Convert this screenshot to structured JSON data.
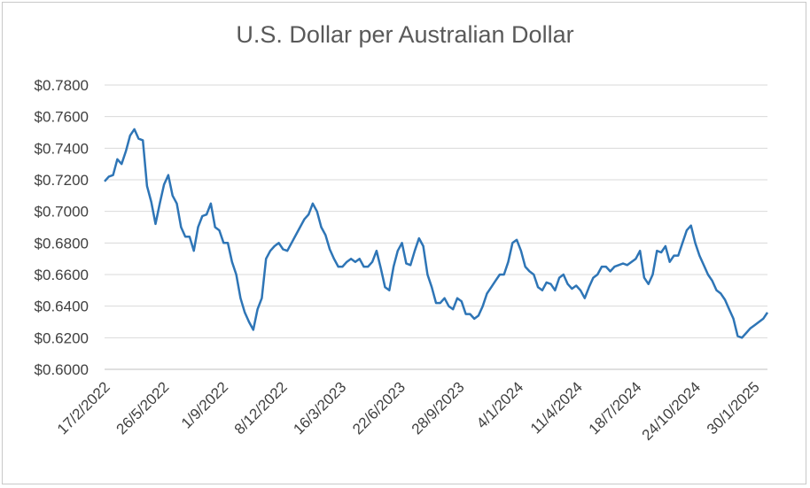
{
  "chart_data": {
    "type": "line",
    "title": "U.S. Dollar per Australian Dollar",
    "xlabel": "",
    "ylabel": "",
    "ylim": [
      0.6,
      0.78
    ],
    "y_ticks": [
      "$0.6000",
      "$0.6200",
      "$0.6400",
      "$0.6600",
      "$0.6800",
      "$0.7000",
      "$0.7200",
      "$0.7400",
      "$0.7600",
      "$0.7800"
    ],
    "x_ticks": [
      "17/2/2022",
      "26/5/2022",
      "1/9/2022",
      "8/12/2022",
      "16/3/2023",
      "22/6/2023",
      "28/9/2023",
      "4/1/2024",
      "11/4/2024",
      "18/7/2024",
      "24/10/2024",
      "30/1/2025"
    ],
    "grid": "horizontal",
    "legend": "none",
    "line_color": "#2e75b6",
    "series": [
      {
        "x": [
          "2022-02-17",
          "2022-02-24",
          "2022-03-03",
          "2022-03-10",
          "2022-03-17",
          "2022-03-24",
          "2022-03-31",
          "2022-04-07",
          "2022-04-14",
          "2022-04-21",
          "2022-04-28",
          "2022-05-05",
          "2022-05-12",
          "2022-05-19",
          "2022-05-26",
          "2022-06-02",
          "2022-06-09",
          "2022-06-16",
          "2022-06-23",
          "2022-06-30",
          "2022-07-07",
          "2022-07-14",
          "2022-07-21",
          "2022-07-28",
          "2022-08-04",
          "2022-08-11",
          "2022-08-18",
          "2022-08-25",
          "2022-09-01",
          "2022-09-08",
          "2022-09-15",
          "2022-09-22",
          "2022-09-29",
          "2022-10-06",
          "2022-10-13",
          "2022-10-20",
          "2022-10-27",
          "2022-11-03",
          "2022-11-10",
          "2022-11-17",
          "2022-11-24",
          "2022-12-01",
          "2022-12-08",
          "2022-12-15",
          "2022-12-22",
          "2022-12-29",
          "2023-01-05",
          "2023-01-12",
          "2023-01-19",
          "2023-01-26",
          "2023-02-02",
          "2023-02-09",
          "2023-02-16",
          "2023-02-23",
          "2023-03-02",
          "2023-03-09",
          "2023-03-16",
          "2023-03-23",
          "2023-03-30",
          "2023-04-06",
          "2023-04-13",
          "2023-04-20",
          "2023-04-27",
          "2023-05-04",
          "2023-05-11",
          "2023-05-18",
          "2023-05-25",
          "2023-06-01",
          "2023-06-08",
          "2023-06-15",
          "2023-06-22",
          "2023-06-29",
          "2023-07-06",
          "2023-07-13",
          "2023-07-20",
          "2023-07-27",
          "2023-08-03",
          "2023-08-10",
          "2023-08-17",
          "2023-08-24",
          "2023-08-31",
          "2023-09-07",
          "2023-09-14",
          "2023-09-21",
          "2023-09-28",
          "2023-10-05",
          "2023-10-12",
          "2023-10-19",
          "2023-10-26",
          "2023-11-02",
          "2023-11-09",
          "2023-11-16",
          "2023-11-23",
          "2023-11-30",
          "2023-12-07",
          "2023-12-14",
          "2023-12-21",
          "2023-12-28",
          "2024-01-04",
          "2024-01-11",
          "2024-01-18",
          "2024-01-25",
          "2024-02-01",
          "2024-02-08",
          "2024-02-15",
          "2024-02-22",
          "2024-02-29",
          "2024-03-07",
          "2024-03-14",
          "2024-03-21",
          "2024-03-28",
          "2024-04-04",
          "2024-04-11",
          "2024-04-18",
          "2024-04-25",
          "2024-05-02",
          "2024-05-09",
          "2024-05-16",
          "2024-05-23",
          "2024-05-30",
          "2024-06-06",
          "2024-06-13",
          "2024-06-20",
          "2024-06-27",
          "2024-07-04",
          "2024-07-11",
          "2024-07-18",
          "2024-07-25",
          "2024-08-01",
          "2024-08-08",
          "2024-08-15",
          "2024-08-22",
          "2024-08-29",
          "2024-09-05",
          "2024-09-12",
          "2024-09-19",
          "2024-09-26",
          "2024-10-03",
          "2024-10-10",
          "2024-10-17",
          "2024-10-24",
          "2024-10-31",
          "2024-11-07",
          "2024-11-14",
          "2024-11-21",
          "2024-11-28",
          "2024-12-05",
          "2024-12-12",
          "2024-12-19",
          "2024-12-26",
          "2025-01-02",
          "2025-01-09",
          "2025-01-16",
          "2025-01-23",
          "2025-01-30",
          "2025-02-06",
          "2025-02-13"
        ],
        "values": [
          0.719,
          0.722,
          0.723,
          0.733,
          0.73,
          0.738,
          0.748,
          0.752,
          0.746,
          0.745,
          0.716,
          0.706,
          0.692,
          0.705,
          0.717,
          0.723,
          0.71,
          0.705,
          0.69,
          0.684,
          0.684,
          0.675,
          0.69,
          0.697,
          0.698,
          0.705,
          0.69,
          0.688,
          0.68,
          0.68,
          0.668,
          0.66,
          0.645,
          0.636,
          0.63,
          0.625,
          0.638,
          0.645,
          0.67,
          0.675,
          0.678,
          0.68,
          0.676,
          0.675,
          0.68,
          0.685,
          0.69,
          0.695,
          0.698,
          0.705,
          0.7,
          0.69,
          0.685,
          0.676,
          0.67,
          0.665,
          0.665,
          0.668,
          0.67,
          0.668,
          0.67,
          0.665,
          0.665,
          0.668,
          0.675,
          0.664,
          0.652,
          0.65,
          0.665,
          0.675,
          0.68,
          0.667,
          0.666,
          0.675,
          0.683,
          0.678,
          0.66,
          0.652,
          0.642,
          0.642,
          0.645,
          0.64,
          0.638,
          0.645,
          0.643,
          0.635,
          0.635,
          0.632,
          0.634,
          0.64,
          0.648,
          0.652,
          0.656,
          0.66,
          0.66,
          0.668,
          0.68,
          0.682,
          0.675,
          0.665,
          0.662,
          0.66,
          0.652,
          0.65,
          0.655,
          0.654,
          0.65,
          0.658,
          0.66,
          0.654,
          0.651,
          0.653,
          0.65,
          0.645,
          0.652,
          0.658,
          0.66,
          0.665,
          0.665,
          0.662,
          0.665,
          0.666,
          0.667,
          0.666,
          0.668,
          0.67,
          0.675,
          0.658,
          0.654,
          0.66,
          0.675,
          0.674,
          0.678,
          0.668,
          0.672,
          0.672,
          0.68,
          0.688,
          0.691,
          0.68,
          0.672,
          0.666,
          0.66,
          0.656,
          0.65,
          0.648,
          0.644,
          0.638,
          0.632,
          0.621,
          0.62,
          0.623,
          0.626,
          0.628,
          0.63,
          0.632,
          0.636
        ]
      }
    ]
  }
}
